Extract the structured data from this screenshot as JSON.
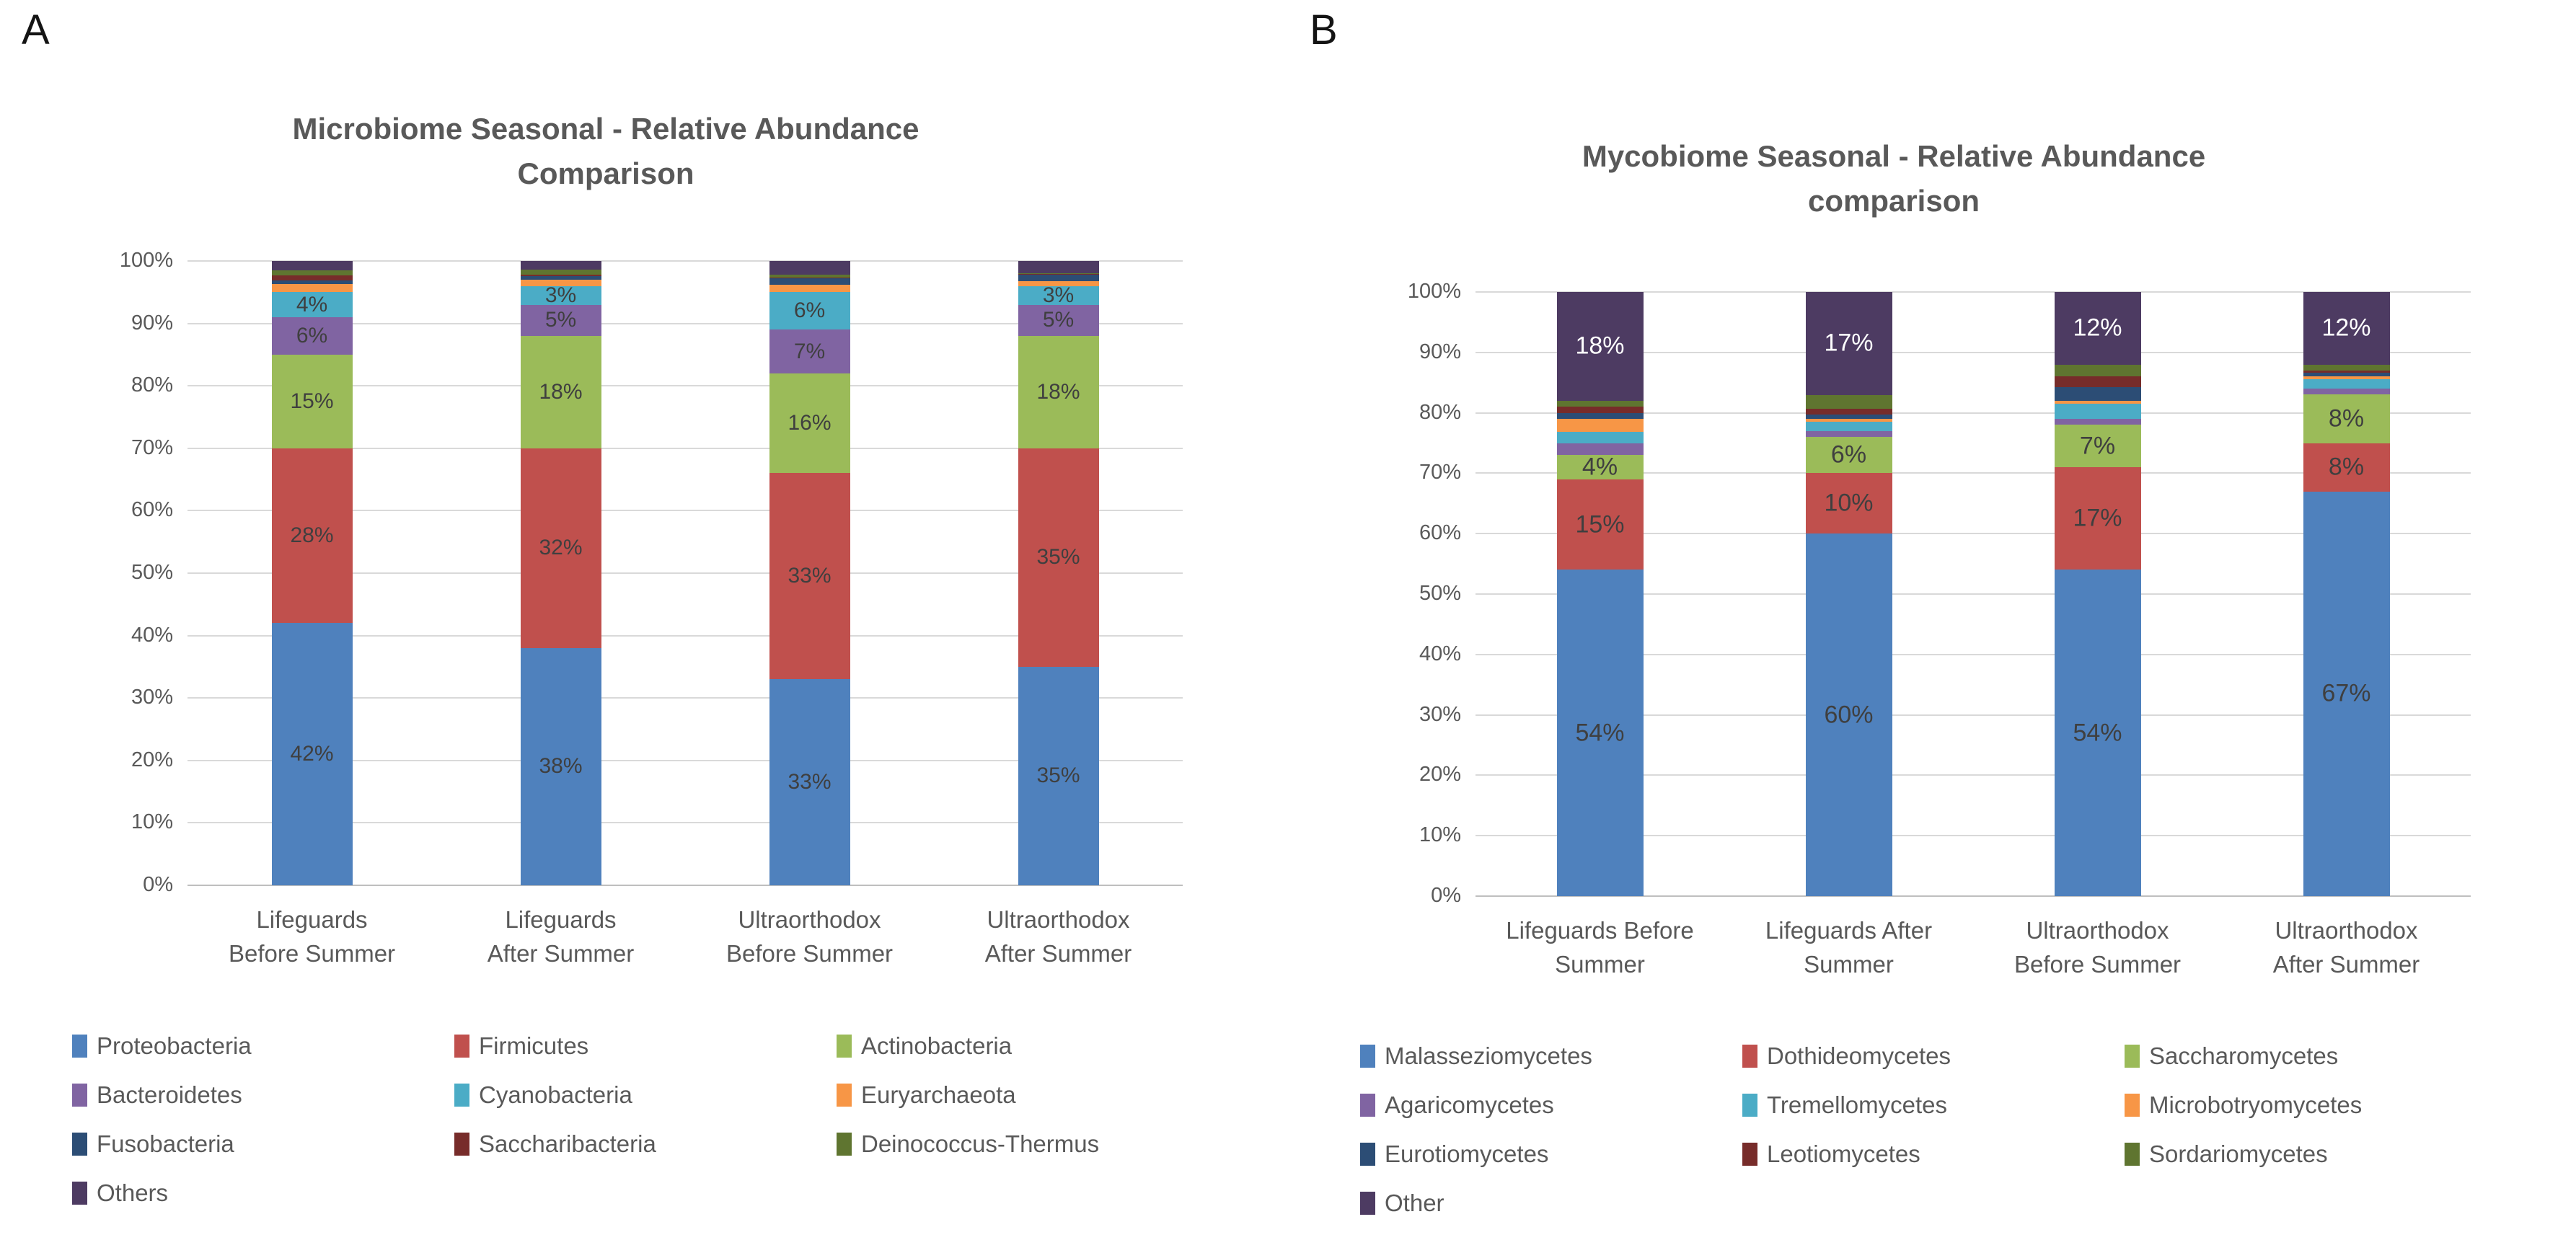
{
  "figure": {
    "background": "#FFFFFF"
  },
  "text_colors": {
    "title": "#595959",
    "axis": "#595959",
    "data_label": "#3F3F3F",
    "data_label_on_dark": "#FFFFFF"
  },
  "chart_data": [
    {
      "type": "bar",
      "subtype": "stacked-100-percent",
      "panel_label": "A",
      "title": "Microbiome Seasonal - Relative Abundance Comparison",
      "title_lines": [
        "Microbiome Seasonal - Relative Abundance",
        "Comparison"
      ],
      "categories": [
        "Lifeguards Before Summer",
        "Lifeguards After Summer",
        "Ultraorthodox Before Summer",
        "Ultraorthodox After Summer"
      ],
      "category_label_lines": [
        [
          "Lifeguards",
          "Before Summer"
        ],
        [
          "Lifeguards",
          "After Summer"
        ],
        [
          "Ultraorthodox",
          "Before Summer"
        ],
        [
          "Ultraorthodox",
          "After Summer"
        ]
      ],
      "y_ticks": [
        "0%",
        "10%",
        "20%",
        "30%",
        "40%",
        "50%",
        "60%",
        "70%",
        "80%",
        "90%",
        "100%"
      ],
      "ylim": [
        0,
        100
      ],
      "grid": true,
      "legend_position": "bottom",
      "label_threshold": 3,
      "labeled_values_note": "Printed data labels: Proteobacteria 42/38/33/35, Firmicutes 28/32/33/35, Actinobacteria 15/18/16/18, Bacteroidetes 6/5/7/5, Cyanobacteria 4/3/6/3; smaller segments unlabeled (estimated)",
      "series": [
        {
          "name": "Proteobacteria",
          "color": "#4F81BD",
          "values": [
            42,
            38,
            33,
            35
          ]
        },
        {
          "name": "Firmicutes",
          "color": "#C0504D",
          "values": [
            28,
            32,
            33,
            35
          ]
        },
        {
          "name": "Actinobacteria",
          "color": "#9BBB59",
          "values": [
            15,
            18,
            16,
            18
          ]
        },
        {
          "name": "Bacteroidetes",
          "color": "#8064A2",
          "values": [
            6,
            5,
            7,
            5
          ]
        },
        {
          "name": "Cyanobacteria",
          "color": "#4BACC6",
          "values": [
            4,
            3,
            6,
            3
          ]
        },
        {
          "name": "Euryarchaeota",
          "color": "#F79646",
          "values": [
            1.3,
            1.0,
            1.2,
            0.8
          ]
        },
        {
          "name": "Fusobacteria",
          "color": "#2C4D75",
          "values": [
            0.6,
            0.6,
            1.0,
            1.0
          ]
        },
        {
          "name": "Saccharibacteria",
          "color": "#772C2A",
          "values": [
            0.8,
            0.2,
            0.2,
            0.1
          ]
        },
        {
          "name": "Deinococcus-Thermus",
          "color": "#5F7530",
          "values": [
            0.8,
            0.8,
            0.4,
            0.1
          ]
        },
        {
          "name": "Others",
          "color": "#4D3B62",
          "values": [
            1.5,
            1.4,
            2.2,
            2.0
          ],
          "label_color": "#FFFFFF"
        }
      ]
    },
    {
      "type": "bar",
      "subtype": "stacked-100-percent",
      "panel_label": "B",
      "title": "Mycobiome Seasonal - Relative Abundance comparison",
      "title_lines": [
        "Mycobiome Seasonal - Relative Abundance",
        "comparison"
      ],
      "categories": [
        "Lifeguards Before Summer",
        "Lifeguards After Summer",
        "Ultraorthodox Before Summer",
        "Ultraorthodox After Summer"
      ],
      "category_label_lines": [
        [
          "Lifeguards Before",
          "Summer"
        ],
        [
          "Lifeguards After",
          "Summer"
        ],
        [
          "Ultraorthodox",
          "Before Summer"
        ],
        [
          "Ultraorthodox",
          "After Summer"
        ]
      ],
      "y_ticks": [
        "0%",
        "10%",
        "20%",
        "30%",
        "40%",
        "50%",
        "60%",
        "70%",
        "80%",
        "90%",
        "100%"
      ],
      "ylim": [
        0,
        100
      ],
      "grid": true,
      "legend_position": "bottom",
      "label_threshold": 3,
      "labeled_values_note": "Printed data labels: Malasseziomycetes 54/60/54/67, Dothideomycetes 15/10/17/8, Saccharomycetes 4/6/7/8, Other 18/17/12/12 (white); smaller segments unlabeled (estimated)",
      "series": [
        {
          "name": "Malasseziomycetes",
          "color": "#4F81BD",
          "values": [
            54,
            60,
            54,
            67
          ]
        },
        {
          "name": "Dothideomycetes",
          "color": "#C0504D",
          "values": [
            15,
            10,
            17,
            8
          ]
        },
        {
          "name": "Saccharomycetes",
          "color": "#9BBB59",
          "values": [
            4,
            6,
            7,
            8
          ]
        },
        {
          "name": "Agaricomycetes",
          "color": "#8064A2",
          "values": [
            2,
            1,
            1,
            1
          ]
        },
        {
          "name": "Tremellomycetes",
          "color": "#4BACC6",
          "values": [
            1.8,
            1.5,
            2.5,
            1.6
          ]
        },
        {
          "name": "Microbotryomycetes",
          "color": "#F79646",
          "values": [
            2.2,
            0.5,
            0.5,
            0.4
          ]
        },
        {
          "name": "Eurotiomycetes",
          "color": "#2C4D75",
          "values": [
            1.0,
            0.7,
            2.2,
            0.6
          ]
        },
        {
          "name": "Leotiomycetes",
          "color": "#772C2A",
          "values": [
            1.0,
            1.0,
            1.8,
            0.4
          ]
        },
        {
          "name": "Sordariomycetes",
          "color": "#5F7530",
          "values": [
            1.0,
            2.3,
            2.0,
            1.0
          ]
        },
        {
          "name": "Other",
          "color": "#4D3B62",
          "values": [
            18,
            17,
            12,
            12
          ],
          "label_color": "#FFFFFF"
        }
      ]
    }
  ]
}
